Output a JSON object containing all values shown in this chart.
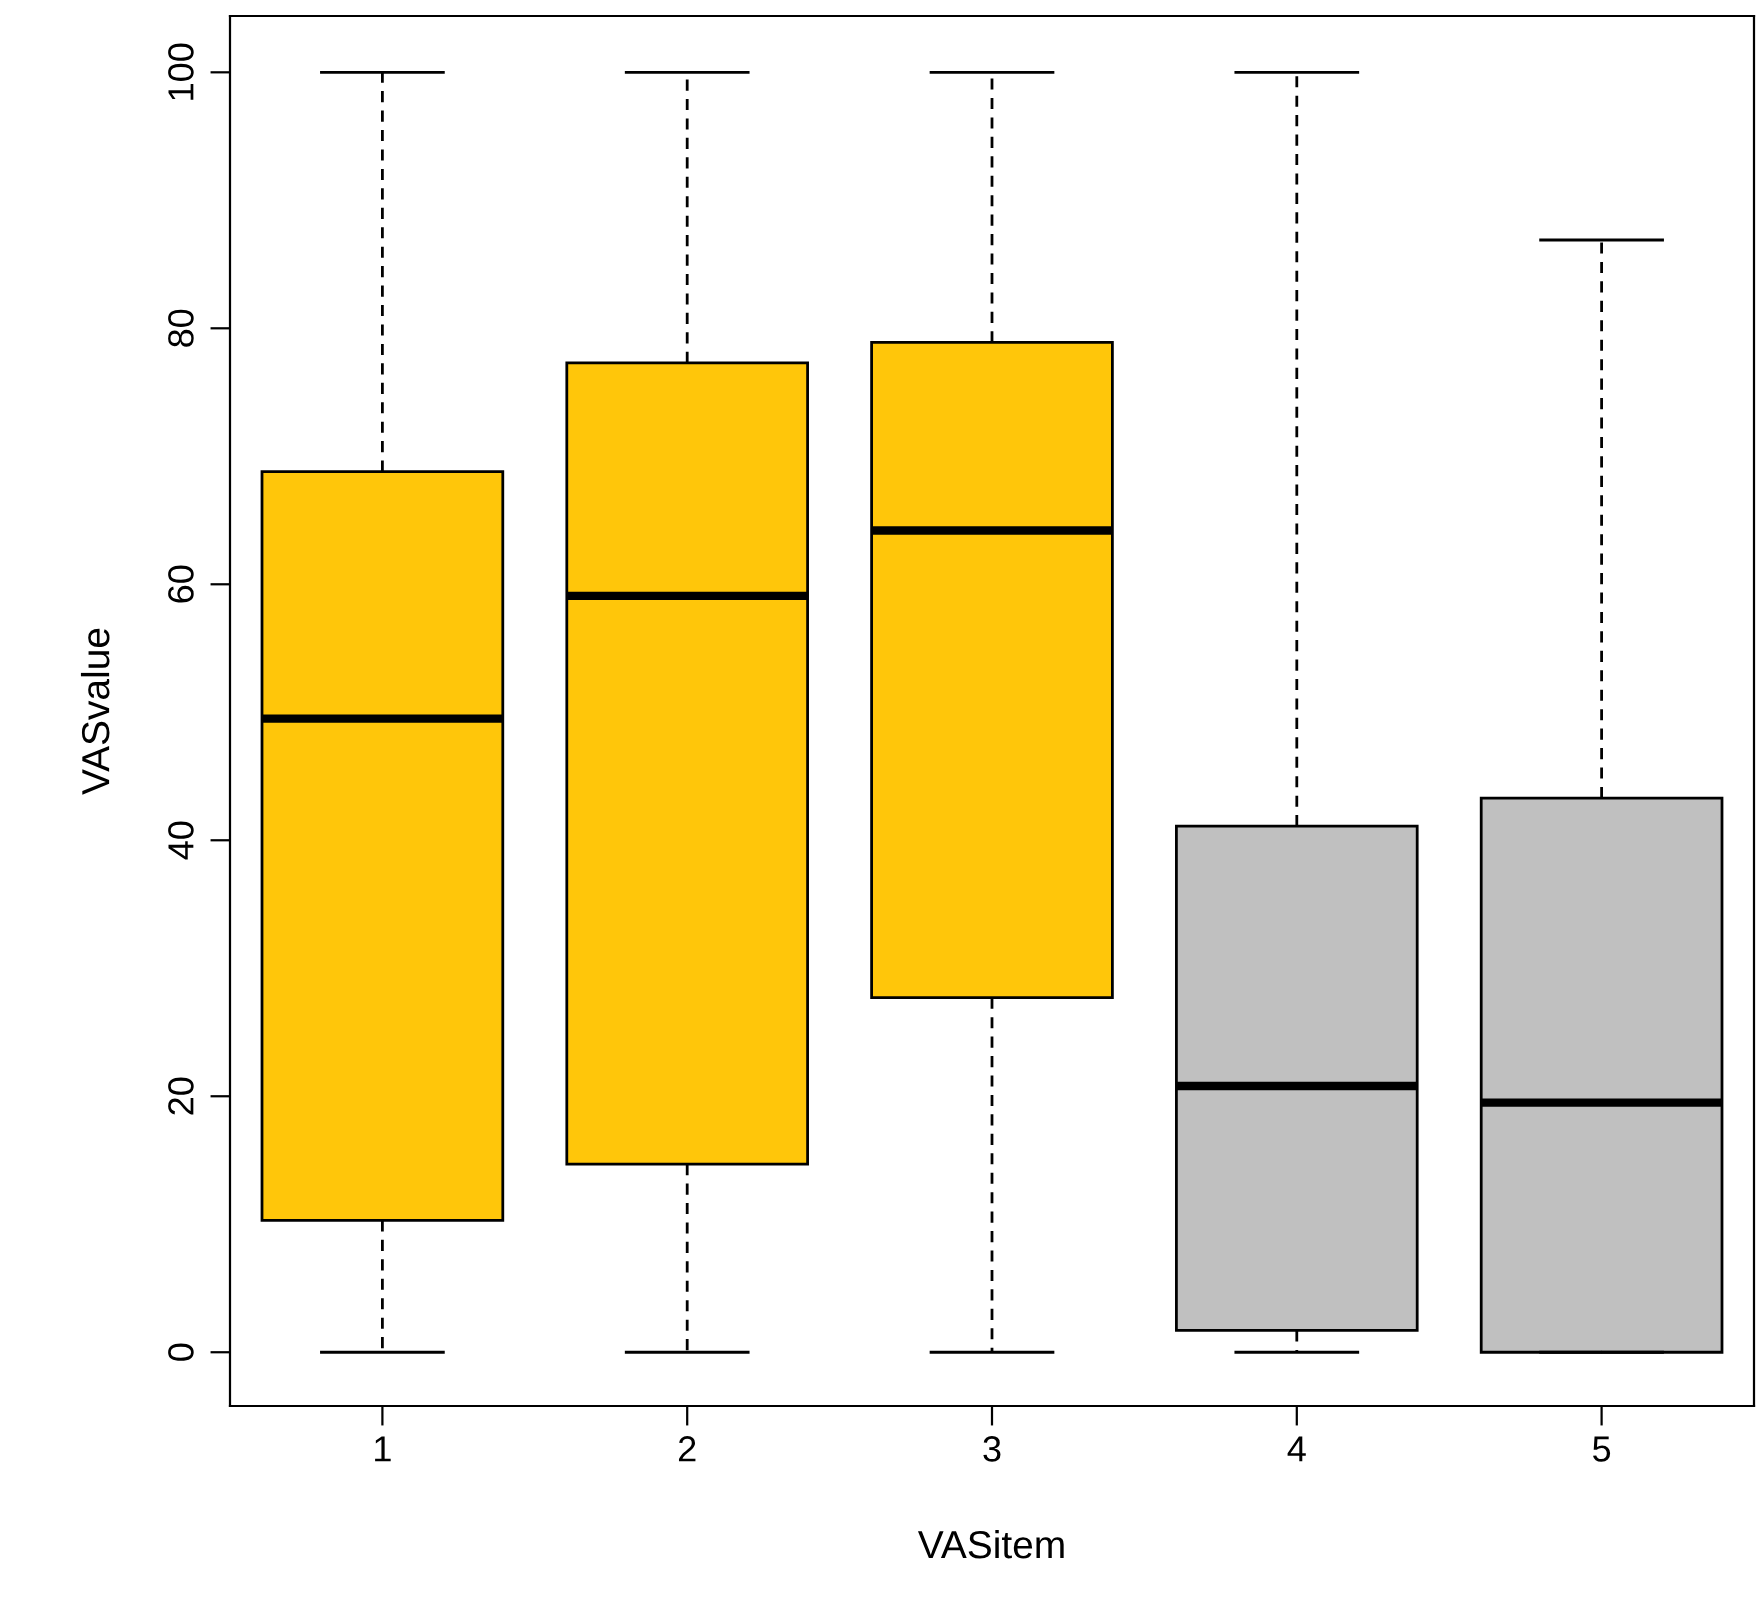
{
  "chart_data": {
    "type": "box",
    "xlabel": "VASitem",
    "ylabel": "VASvalue",
    "categories": [
      "1",
      "2",
      "3",
      "4",
      "5"
    ],
    "colors": [
      "#ffc60a",
      "#ffc60a",
      "#ffc60a",
      "#c0c0c0",
      "#c0c0c0"
    ],
    "boxes": [
      {
        "low": 0,
        "q1": 10.3,
        "median": 49.5,
        "q3": 68.8,
        "high": 100
      },
      {
        "low": 0,
        "q1": 14.7,
        "median": 59.1,
        "q3": 77.3,
        "high": 100
      },
      {
        "low": 0,
        "q1": 27.7,
        "median": 64.2,
        "q3": 78.9,
        "high": 100
      },
      {
        "low": 0,
        "q1": 1.7,
        "median": 20.8,
        "q3": 41.1,
        "high": 100
      },
      {
        "low": 0,
        "q1": 0,
        "median": 19.5,
        "q3": 43.3,
        "high": 86.9
      }
    ],
    "ylim": [
      -4.2,
      104.4
    ],
    "yticks": [
      0,
      20,
      40,
      60,
      80,
      100
    ],
    "grid": false
  }
}
